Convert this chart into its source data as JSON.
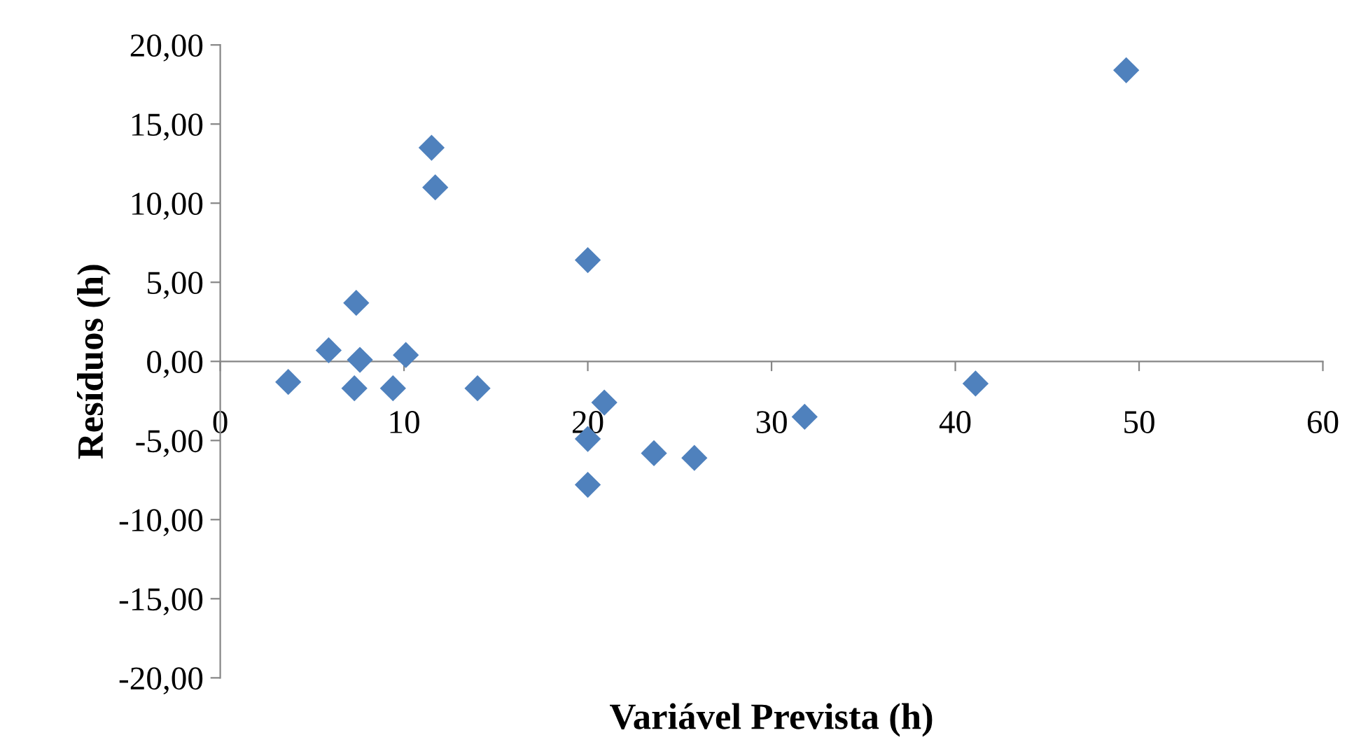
{
  "chart_data": {
    "type": "scatter",
    "xlabel": "Variável Prevista (h)",
    "ylabel": "Resíduos (h)",
    "x": [
      3.7,
      5.9,
      7.4,
      7.6,
      7.3,
      9.4,
      10.1,
      11.5,
      11.7,
      14.0,
      20.0,
      20.0,
      20.0,
      20.9,
      23.6,
      25.8,
      31.8,
      41.1,
      49.3
    ],
    "series": [
      {
        "color": "#4f81bd",
        "values": [
          -1.3,
          0.7,
          3.7,
          0.1,
          -1.7,
          -1.7,
          0.4,
          13.5,
          11.0,
          -1.7,
          6.4,
          -4.9,
          -7.8,
          -2.6,
          -5.8,
          -6.1,
          -3.5,
          -1.4,
          18.4
        ]
      }
    ],
    "xlim": [
      0,
      60
    ],
    "xticks": [
      0,
      10,
      20,
      30,
      40,
      50,
      60
    ],
    "ylim": [
      -20,
      20
    ],
    "yticks": [
      {
        "value": -20,
        "label": "-20,00"
      },
      {
        "value": -15,
        "label": "-15,00"
      },
      {
        "value": -10,
        "label": "-10,00"
      },
      {
        "value": -5,
        "label": "-5,00"
      },
      {
        "value": 0,
        "label": "0,00"
      },
      {
        "value": 5,
        "label": "5,00"
      },
      {
        "value": 10,
        "label": "10,00"
      },
      {
        "value": 15,
        "label": "15,00"
      },
      {
        "value": 20,
        "label": "20,00"
      }
    ],
    "marker": "diamond",
    "grid": false
  }
}
